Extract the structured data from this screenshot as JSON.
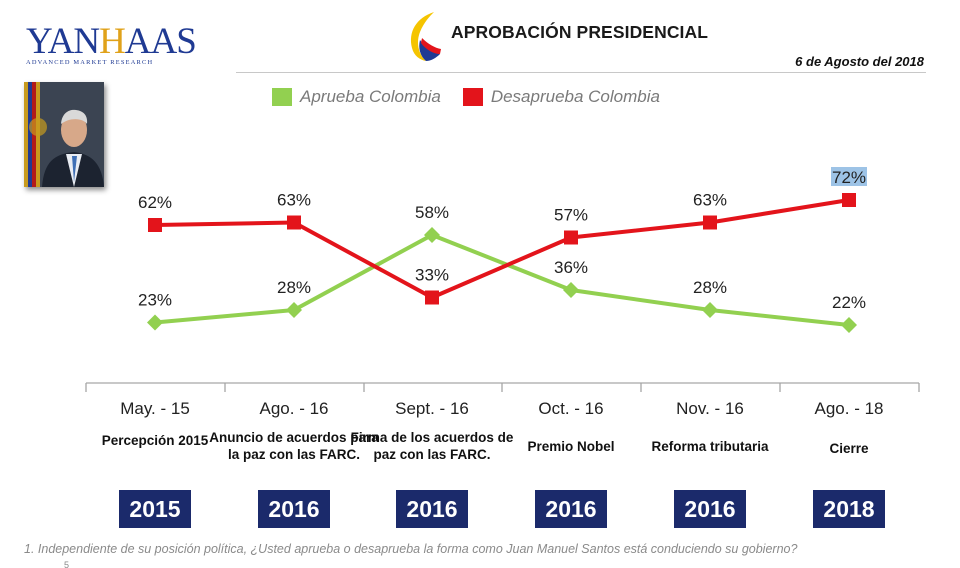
{
  "logo": {
    "text_blue1": "YAN",
    "text_gold": "H",
    "text_blue2": "AAS",
    "subtitle": "ADVANCED MARKET RESEARCH"
  },
  "header": {
    "title": "APROBACIÓN PRESIDENCIAL",
    "date": "6 de Agosto del 2018"
  },
  "colors": {
    "approve": "#92d050",
    "disapprove": "#e3141b",
    "badge": "#1b2a6b",
    "highlight": "#9dc3e6"
  },
  "chart_data": {
    "type": "line",
    "categories": [
      "May. - 15",
      "Ago. - 16",
      "Sept. - 16",
      "Oct. - 16",
      "Nov. - 16",
      "Ago. - 18"
    ],
    "series": [
      {
        "name": "Aprueba Colombia",
        "values": [
          23,
          28,
          58,
          36,
          28,
          22
        ],
        "labels": [
          "23%",
          "28%",
          "58%",
          "36%",
          "28%",
          "22%"
        ],
        "marker": "diamond",
        "color": "#92d050"
      },
      {
        "name": "Desaprueba Colombia",
        "values": [
          62,
          63,
          33,
          57,
          63,
          72
        ],
        "labels": [
          "62%",
          "63%",
          "33%",
          "57%",
          "63%",
          "72%"
        ],
        "marker": "square",
        "color": "#e3141b"
      }
    ],
    "ylim": [
      0,
      100
    ],
    "highlighted_label": "72%"
  },
  "events": [
    {
      "caption": "Percepción 2015",
      "year": "2015"
    },
    {
      "caption": "Anuncio de acuerdos para la paz con las FARC.",
      "year": "2016"
    },
    {
      "caption": "Firma de los acuerdos de paz con las FARC.",
      "year": "2016"
    },
    {
      "caption": "Premio Nobel",
      "year": "2016"
    },
    {
      "caption": "Reforma tributaria",
      "year": "2016"
    },
    {
      "caption": "Cierre",
      "year": "2018"
    }
  ],
  "footnote": "1. Independiente de su posición política, ¿Usted aprueba o desaprueba la forma como Juan Manuel Santos está conduciendo su gobierno?",
  "page_number": "5"
}
